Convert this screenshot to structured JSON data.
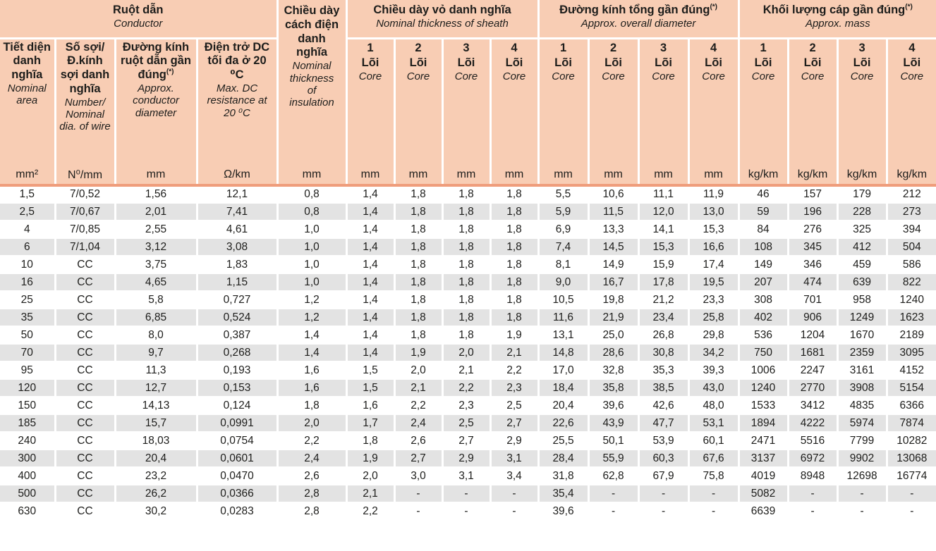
{
  "colors": {
    "header_bg": "#f8cdb4",
    "header_underline": "#ef9d7c",
    "row_alt_bg": "#e3e3e3",
    "row_bg": "#ffffff",
    "text": "#1d1d1b",
    "separator": "#ffffff"
  },
  "table": {
    "groups": {
      "conductor": {
        "vi": "Ruột dẫn",
        "en": "Conductor"
      },
      "insulation": {
        "vi": "Chiều dày cách điện danh nghĩa",
        "en": "Nominal thickness of insulation"
      },
      "sheath": {
        "vi": "Chiều dày vỏ danh nghĩa",
        "en": "Nominal thickness of sheath"
      },
      "diameter": {
        "vi": "Đường kính tổng gần đúng",
        "sup": "(*)",
        "en": "Approx. overall diameter"
      },
      "mass": {
        "vi": "Khối lượng cáp gần đúng",
        "sup": "(*)",
        "en": "Approx. mass"
      }
    },
    "conductor_columns": [
      {
        "vi": "Tiết diện danh nghĩa",
        "en": "Nominal area"
      },
      {
        "vi": "Số sợi/ Đ.kính sợi danh nghĩa",
        "en": "Number/ Nominal dia. of wire"
      },
      {
        "vi": "Đường kính ruột dẫn gần đúng",
        "sup": "(*)",
        "en": "Approx. conductor diameter"
      },
      {
        "vi": "Điện trở DC tối đa ở 20 ⁰C",
        "en": "Max. DC resistance at 20 ⁰C"
      }
    ],
    "core_header": {
      "nums": [
        "1",
        "2",
        "3",
        "4"
      ],
      "vi": "Lõi",
      "en": "Core"
    },
    "units": [
      "mm²",
      "N⁰/mm",
      "mm",
      "Ω/km",
      "mm",
      "mm",
      "mm",
      "mm",
      "mm",
      "mm",
      "mm",
      "mm",
      "mm",
      "kg/km",
      "kg/km",
      "kg/km",
      "kg/km"
    ],
    "rows": [
      [
        "1,5",
        "7/0,52",
        "1,56",
        "12,1",
        "0,8",
        "1,4",
        "1,8",
        "1,8",
        "1,8",
        "5,5",
        "10,6",
        "11,1",
        "11,9",
        "46",
        "157",
        "179",
        "212"
      ],
      [
        "2,5",
        "7/0,67",
        "2,01",
        "7,41",
        "0,8",
        "1,4",
        "1,8",
        "1,8",
        "1,8",
        "5,9",
        "11,5",
        "12,0",
        "13,0",
        "59",
        "196",
        "228",
        "273"
      ],
      [
        "4",
        "7/0,85",
        "2,55",
        "4,61",
        "1,0",
        "1,4",
        "1,8",
        "1,8",
        "1,8",
        "6,9",
        "13,3",
        "14,1",
        "15,3",
        "84",
        "276",
        "325",
        "394"
      ],
      [
        "6",
        "7/1,04",
        "3,12",
        "3,08",
        "1,0",
        "1,4",
        "1,8",
        "1,8",
        "1,8",
        "7,4",
        "14,5",
        "15,3",
        "16,6",
        "108",
        "345",
        "412",
        "504"
      ],
      [
        "10",
        "CC",
        "3,75",
        "1,83",
        "1,0",
        "1,4",
        "1,8",
        "1,8",
        "1,8",
        "8,1",
        "14,9",
        "15,9",
        "17,4",
        "149",
        "346",
        "459",
        "586"
      ],
      [
        "16",
        "CC",
        "4,65",
        "1,15",
        "1,0",
        "1,4",
        "1,8",
        "1,8",
        "1,8",
        "9,0",
        "16,7",
        "17,8",
        "19,5",
        "207",
        "474",
        "639",
        "822"
      ],
      [
        "25",
        "CC",
        "5,8",
        "0,727",
        "1,2",
        "1,4",
        "1,8",
        "1,8",
        "1,8",
        "10,5",
        "19,8",
        "21,2",
        "23,3",
        "308",
        "701",
        "958",
        "1240"
      ],
      [
        "35",
        "CC",
        "6,85",
        "0,524",
        "1,2",
        "1,4",
        "1,8",
        "1,8",
        "1,8",
        "11,6",
        "21,9",
        "23,4",
        "25,8",
        "402",
        "906",
        "1249",
        "1623"
      ],
      [
        "50",
        "CC",
        "8,0",
        "0,387",
        "1,4",
        "1,4",
        "1,8",
        "1,8",
        "1,9",
        "13,1",
        "25,0",
        "26,8",
        "29,8",
        "536",
        "1204",
        "1670",
        "2189"
      ],
      [
        "70",
        "CC",
        "9,7",
        "0,268",
        "1,4",
        "1,4",
        "1,9",
        "2,0",
        "2,1",
        "14,8",
        "28,6",
        "30,8",
        "34,2",
        "750",
        "1681",
        "2359",
        "3095"
      ],
      [
        "95",
        "CC",
        "11,3",
        "0,193",
        "1,6",
        "1,5",
        "2,0",
        "2,1",
        "2,2",
        "17,0",
        "32,8",
        "35,3",
        "39,3",
        "1006",
        "2247",
        "3161",
        "4152"
      ],
      [
        "120",
        "CC",
        "12,7",
        "0,153",
        "1,6",
        "1,5",
        "2,1",
        "2,2",
        "2,3",
        "18,4",
        "35,8",
        "38,5",
        "43,0",
        "1240",
        "2770",
        "3908",
        "5154"
      ],
      [
        "150",
        "CC",
        "14,13",
        "0,124",
        "1,8",
        "1,6",
        "2,2",
        "2,3",
        "2,5",
        "20,4",
        "39,6",
        "42,6",
        "48,0",
        "1533",
        "3412",
        "4835",
        "6366"
      ],
      [
        "185",
        "CC",
        "15,7",
        "0,0991",
        "2,0",
        "1,7",
        "2,4",
        "2,5",
        "2,7",
        "22,6",
        "43,9",
        "47,7",
        "53,1",
        "1894",
        "4222",
        "5974",
        "7874"
      ],
      [
        "240",
        "CC",
        "18,03",
        "0,0754",
        "2,2",
        "1,8",
        "2,6",
        "2,7",
        "2,9",
        "25,5",
        "50,1",
        "53,9",
        "60,1",
        "2471",
        "5516",
        "7799",
        "10282"
      ],
      [
        "300",
        "CC",
        "20,4",
        "0,0601",
        "2,4",
        "1,9",
        "2,7",
        "2,9",
        "3,1",
        "28,4",
        "55,9",
        "60,3",
        "67,6",
        "3137",
        "6972",
        "9902",
        "13068"
      ],
      [
        "400",
        "CC",
        "23,2",
        "0,0470",
        "2,6",
        "2,0",
        "3,0",
        "3,1",
        "3,4",
        "31,8",
        "62,8",
        "67,9",
        "75,8",
        "4019",
        "8948",
        "12698",
        "16774"
      ],
      [
        "500",
        "CC",
        "26,2",
        "0,0366",
        "2,8",
        "2,1",
        "-",
        "-",
        "-",
        "35,4",
        "-",
        "-",
        "-",
        "5082",
        "-",
        "-",
        "-"
      ],
      [
        "630",
        "CC",
        "30,2",
        "0,0283",
        "2,8",
        "2,2",
        "-",
        "-",
        "-",
        "39,6",
        "-",
        "-",
        "-",
        "6639",
        "-",
        "-",
        "-"
      ]
    ]
  }
}
